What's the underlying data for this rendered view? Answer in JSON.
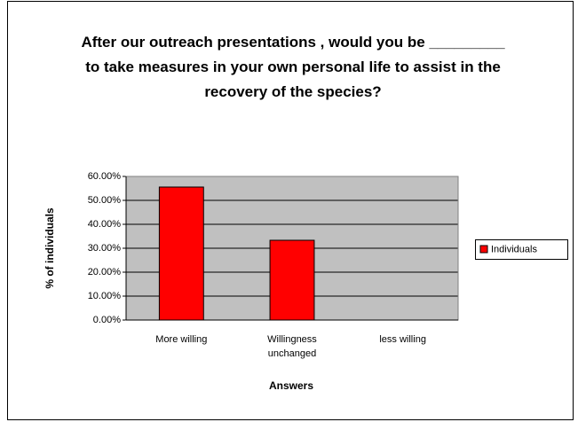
{
  "chart_data": {
    "type": "bar",
    "title": "After our outreach presentations , would you be _________ to take measures in your own personal life to assist in the recovery of the species?",
    "x_label": "Answers",
    "y_label": "% of individuals",
    "categories": [
      "More willing",
      "Willingness unchanged",
      "less willing"
    ],
    "series": [
      {
        "name": "Individuals",
        "color": "#ff0000",
        "values": [
          55.56,
          33.33,
          0
        ]
      }
    ],
    "ylim": [
      0,
      60
    ],
    "yticks": [
      {
        "value": 0,
        "label": "0.00%"
      },
      {
        "value": 10,
        "label": "10.00%"
      },
      {
        "value": 20,
        "label": "20.00%"
      },
      {
        "value": 30,
        "label": "30.00%"
      },
      {
        "value": 40,
        "label": "40.00%"
      },
      {
        "value": 50,
        "label": "50.00%"
      },
      {
        "value": 60,
        "label": "60.00%"
      }
    ],
    "grid": true,
    "legend": "right"
  }
}
